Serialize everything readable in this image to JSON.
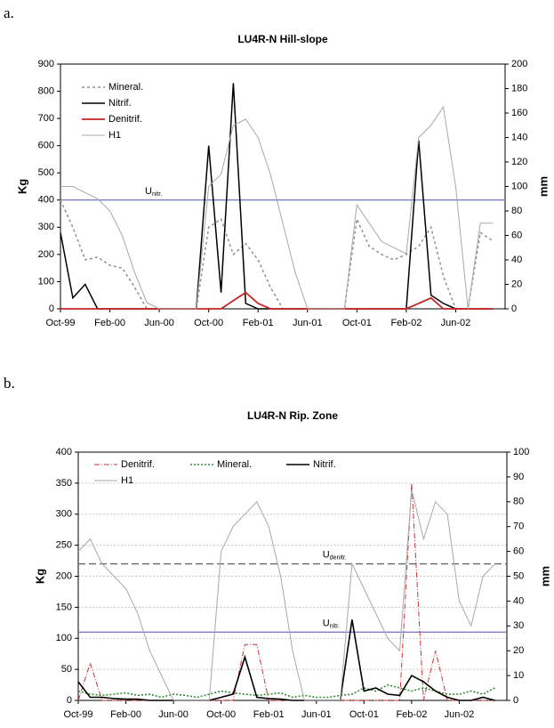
{
  "chart_data": [
    {
      "type": "line",
      "panel": "a.",
      "title": "LU4R-N Hill-slope",
      "y_label": "Kg",
      "y2_label": "mm",
      "categories": [
        "Oct-99",
        null,
        null,
        null,
        "Feb-00",
        null,
        null,
        null,
        "Jun-00",
        null,
        null,
        null,
        "Oct-00",
        null,
        null,
        null,
        "Feb-01",
        null,
        null,
        null,
        "Jun-01",
        null,
        null,
        null,
        "Oct-01",
        null,
        null,
        null,
        "Feb-02",
        null,
        null,
        null,
        "Jun-02",
        null,
        null,
        null
      ],
      "ylim": [
        0,
        900
      ],
      "yticks": [
        0,
        100,
        200,
        300,
        400,
        500,
        600,
        700,
        800,
        900
      ],
      "y2lim": [
        0,
        200
      ],
      "y2ticks": [
        0,
        20,
        40,
        60,
        80,
        100,
        120,
        140,
        160,
        180,
        200
      ],
      "grid": false,
      "reference_lines": [
        {
          "label": "U",
          "subscript": "nitr.",
          "value": 400,
          "color": "#7070b8"
        }
      ],
      "series": [
        {
          "name": "Mineral.",
          "color": "#909090",
          "dash": "3,3",
          "width": 1.5,
          "values": [
            400,
            300,
            180,
            190,
            160,
            150,
            80,
            0,
            0,
            0,
            0,
            0,
            300,
            330,
            200,
            240,
            180,
            80,
            0,
            0,
            0,
            0,
            0,
            0,
            330,
            230,
            200,
            180,
            200,
            230,
            300,
            120,
            0,
            0,
            280,
            250
          ]
        },
        {
          "name": "Nitrif.",
          "color": "#000000",
          "dash": "",
          "width": 1.5,
          "values": [
            280,
            40,
            90,
            0,
            0,
            0,
            0,
            0,
            0,
            0,
            0,
            0,
            600,
            60,
            830,
            20,
            0,
            0,
            0,
            0,
            0,
            0,
            0,
            0,
            0,
            0,
            0,
            0,
            0,
            620,
            50,
            20,
            0,
            0,
            0,
            0
          ]
        },
        {
          "name": "Denitrif.",
          "color": "#cc2222",
          "dash": "",
          "width": 1.8,
          "values": [
            0,
            0,
            0,
            0,
            0,
            0,
            0,
            0,
            0,
            0,
            0,
            0,
            0,
            0,
            30,
            60,
            20,
            0,
            0,
            0,
            0,
            0,
            0,
            0,
            0,
            0,
            0,
            0,
            0,
            20,
            40,
            0,
            0,
            0,
            0,
            0
          ]
        },
        {
          "name": "H1",
          "color": "#a8a8a8",
          "dash": "",
          "width": 1,
          "axis": "y2",
          "values": [
            100,
            100,
            95,
            90,
            80,
            60,
            30,
            5,
            0,
            0,
            0,
            0,
            100,
            110,
            150,
            155,
            140,
            110,
            70,
            30,
            0,
            0,
            0,
            0,
            85,
            70,
            55,
            50,
            45,
            140,
            150,
            165,
            100,
            0,
            70,
            70
          ]
        }
      ]
    },
    {
      "type": "line",
      "panel": "b.",
      "title": "LU4R-N Rip. Zone",
      "y_label": "Kg",
      "y2_label": "mm",
      "categories": [
        "Oct-99",
        null,
        null,
        null,
        "Feb-00",
        null,
        null,
        null,
        "Jun-00",
        null,
        null,
        null,
        "Oct-00",
        null,
        null,
        null,
        "Feb-01",
        null,
        null,
        null,
        "Jun-01",
        null,
        null,
        null,
        "Oct-01",
        null,
        null,
        null,
        "Feb-02",
        null,
        null,
        null,
        "Jun-02",
        null,
        null,
        null
      ],
      "ylim": [
        0,
        400
      ],
      "yticks": [
        0,
        50,
        100,
        150,
        200,
        250,
        300,
        350,
        400
      ],
      "y2lim": [
        0,
        100
      ],
      "y2ticks": [
        0,
        10,
        20,
        30,
        40,
        50,
        60,
        70,
        80,
        90,
        100
      ],
      "grid": true,
      "reference_lines": [
        {
          "label": "U",
          "subscript": "denitr.",
          "value": 220,
          "color": "#666666"
        },
        {
          "label": "U",
          "subscript": "nitr.",
          "value": 110,
          "color": "#7070b8"
        }
      ],
      "series": [
        {
          "name": "Denitrif.",
          "color": "#cc3333",
          "dash": "6,2,1,2",
          "width": 1,
          "values": [
            0,
            60,
            0,
            0,
            0,
            0,
            0,
            0,
            0,
            0,
            0,
            0,
            0,
            0,
            90,
            90,
            0,
            0,
            0,
            0,
            0,
            0,
            0,
            0,
            0,
            0,
            0,
            0,
            350,
            0,
            80,
            0,
            0,
            0,
            0,
            0
          ]
        },
        {
          "name": "Mineral.",
          "color": "#2e8b2e",
          "dash": "2,2",
          "width": 1.6,
          "values": [
            15,
            10,
            8,
            10,
            12,
            8,
            10,
            5,
            10,
            8,
            5,
            10,
            15,
            12,
            10,
            8,
            10,
            12,
            5,
            8,
            5,
            5,
            8,
            10,
            20,
            15,
            25,
            20,
            15,
            20,
            15,
            10,
            10,
            15,
            10,
            20
          ]
        },
        {
          "name": "Nitrif.",
          "color": "#000000",
          "dash": "",
          "width": 1.6,
          "values": [
            30,
            5,
            5,
            3,
            2,
            2,
            0,
            0,
            0,
            0,
            0,
            0,
            5,
            10,
            70,
            5,
            3,
            2,
            0,
            0,
            0,
            0,
            0,
            130,
            15,
            20,
            10,
            8,
            40,
            30,
            15,
            5,
            0,
            0,
            5,
            0
          ]
        },
        {
          "name": "H1",
          "color": "#a8a8a8",
          "dash": "",
          "width": 1,
          "axis": "y2",
          "values": [
            60,
            65,
            55,
            50,
            45,
            35,
            20,
            10,
            0,
            0,
            0,
            0,
            60,
            70,
            75,
            80,
            70,
            50,
            20,
            0,
            0,
            0,
            0,
            55,
            45,
            35,
            25,
            20,
            85,
            65,
            80,
            75,
            40,
            30,
            50,
            55
          ]
        }
      ]
    }
  ]
}
